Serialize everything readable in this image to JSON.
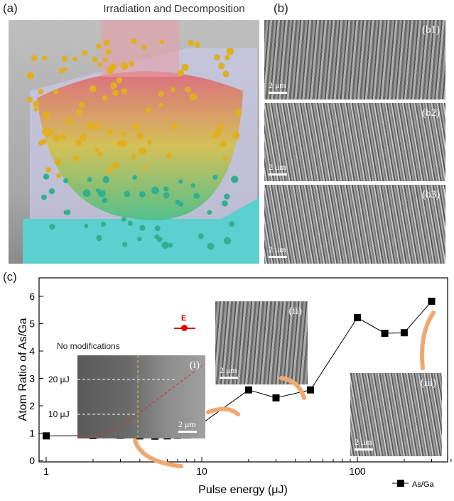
{
  "panel_a": {
    "label": "(a)",
    "title": "Irradiation and Decomposition"
  },
  "panel_b": {
    "label": "(b)",
    "images": [
      {
        "label": "(b1)",
        "scale": "2 μm"
      },
      {
        "label": "(b2)",
        "scale": "2 μm"
      },
      {
        "label": "(b3)",
        "scale": "2 μm"
      }
    ]
  },
  "panel_c": {
    "label": "(c)",
    "annotations": {
      "no_mod": "No modifications",
      "e_field": "E",
      "inset_i": "(i)",
      "inset_ii": "(ii)",
      "inset_iii": "(iii)",
      "scale": "2 μm",
      "line_20": "20 μJ",
      "line_10": "10 μJ"
    }
  },
  "chart_data": {
    "type": "line",
    "xscale": "log",
    "xlabel": "Pulse energy (μJ)",
    "ylabel": "Atom Ratio of As/Ga",
    "xlim": [
      0.85,
      450
    ],
    "ylim": [
      0,
      6.5
    ],
    "xticks": [
      "1",
      "10",
      "100"
    ],
    "yticks": [
      "0",
      "1",
      "2",
      "3",
      "4",
      "5",
      "6"
    ],
    "legend": {
      "position": "bottom-right",
      "entries": [
        "As/Ga"
      ]
    },
    "series": [
      {
        "name": "As/Ga",
        "color": "#000000",
        "x": [
          1,
          2,
          3,
          4,
          5,
          6,
          7,
          8,
          9,
          10,
          20,
          30,
          50,
          100,
          150,
          200,
          300
        ],
        "y": [
          0.9,
          0.91,
          0.92,
          0.9,
          0.89,
          0.9,
          0.92,
          0.93,
          1.18,
          1.35,
          2.58,
          2.29,
          2.58,
          5.22,
          4.65,
          4.67,
          5.82
        ]
      }
    ]
  }
}
